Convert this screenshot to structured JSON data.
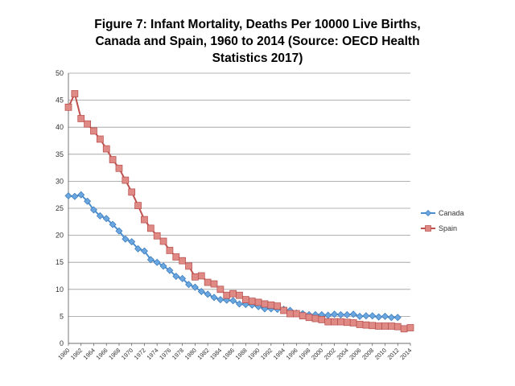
{
  "chart_data": {
    "type": "line",
    "title_lines": [
      "Figure 7: Infant Mortality, Deaths Per 10000 Live Births,",
      "Canada and Spain, 1960 to 2014 (Source: OECD Health",
      "Statistics 2017)"
    ],
    "xlabel": "",
    "ylabel": "",
    "ylim": [
      0,
      50
    ],
    "yticks": [
      0,
      5,
      10,
      15,
      20,
      25,
      30,
      35,
      40,
      45,
      50
    ],
    "xlim": [
      1960,
      2014
    ],
    "xtick_labels": [
      "1960",
      "1962",
      "1964",
      "1966",
      "1968",
      "1970",
      "1972",
      "1974",
      "1976",
      "1978",
      "1980",
      "1982",
      "1984",
      "1986",
      "1988",
      "1990",
      "1992",
      "1994",
      "1996",
      "1998",
      "2000",
      "2002",
      "2004",
      "2006",
      "2008",
      "2010",
      "2012",
      "2014"
    ],
    "legend_position": "right",
    "series": [
      {
        "name": "Canada",
        "color": "#4a8fd0",
        "marker": "diamond",
        "x": [
          1960,
          1961,
          1962,
          1963,
          1964,
          1965,
          1966,
          1967,
          1968,
          1969,
          1970,
          1971,
          1972,
          1973,
          1974,
          1975,
          1976,
          1977,
          1978,
          1979,
          1980,
          1981,
          1982,
          1983,
          1984,
          1985,
          1986,
          1987,
          1988,
          1989,
          1990,
          1991,
          1992,
          1993,
          1994,
          1995,
          1996,
          1997,
          1998,
          1999,
          2000,
          2001,
          2002,
          2003,
          2004,
          2005,
          2006,
          2007,
          2008,
          2009,
          2010,
          2011,
          2012
        ],
        "values": [
          27.3,
          27.2,
          27.5,
          26.3,
          24.7,
          23.6,
          23.1,
          22.0,
          20.8,
          19.3,
          18.8,
          17.5,
          17.1,
          15.5,
          15.0,
          14.3,
          13.5,
          12.4,
          12.0,
          10.9,
          10.4,
          9.6,
          9.1,
          8.5,
          8.1,
          8.0,
          7.9,
          7.3,
          7.2,
          7.1,
          6.8,
          6.4,
          6.4,
          6.3,
          6.3,
          6.1,
          5.6,
          5.5,
          5.3,
          5.3,
          5.3,
          5.2,
          5.4,
          5.3,
          5.3,
          5.4,
          5.0,
          5.1,
          5.1,
          4.9,
          5.0,
          4.8,
          4.8
        ]
      },
      {
        "name": "Spain",
        "color": "#c0504d",
        "marker": "square",
        "x": [
          1960,
          1961,
          1962,
          1963,
          1964,
          1965,
          1966,
          1967,
          1968,
          1969,
          1970,
          1971,
          1972,
          1973,
          1974,
          1975,
          1976,
          1977,
          1978,
          1979,
          1980,
          1981,
          1982,
          1983,
          1984,
          1985,
          1986,
          1987,
          1988,
          1989,
          1990,
          1991,
          1992,
          1993,
          1994,
          1995,
          1996,
          1997,
          1998,
          1999,
          2000,
          2001,
          2002,
          2003,
          2004,
          2005,
          2006,
          2007,
          2008,
          2009,
          2010,
          2011,
          2012,
          2013,
          2014
        ],
        "values": [
          43.7,
          46.2,
          41.6,
          40.6,
          39.3,
          37.8,
          36.0,
          34.0,
          32.4,
          30.2,
          28.0,
          25.5,
          22.9,
          21.3,
          19.9,
          18.9,
          17.2,
          16.0,
          15.3,
          14.3,
          12.3,
          12.5,
          11.3,
          11.0,
          10.0,
          8.9,
          9.2,
          8.9,
          8.1,
          7.8,
          7.6,
          7.3,
          7.1,
          6.9,
          6.1,
          5.5,
          5.5,
          5.1,
          4.8,
          4.6,
          4.4,
          4.0,
          4.0,
          4.0,
          3.9,
          3.8,
          3.5,
          3.4,
          3.3,
          3.2,
          3.2,
          3.2,
          3.1,
          2.7,
          2.9
        ]
      }
    ]
  }
}
